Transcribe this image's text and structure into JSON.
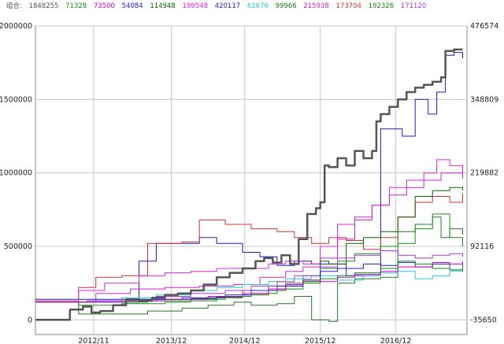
{
  "legend": {
    "label": "组合:",
    "values": [
      "1848255",
      "71328",
      "73500",
      "54084",
      "114948",
      "199548",
      "420117",
      "61676",
      "99966",
      "215938",
      "173704",
      "192326",
      "171120"
    ],
    "colors": [
      "#555555",
      "#1a8a1a",
      "#cc00cc",
      "#2020cc",
      "#006600",
      "#dd22dd",
      "#1a1acc",
      "#22cccc",
      "#227722",
      "#cc22cc",
      "#cc3333",
      "#118811",
      "#aa33dd"
    ]
  },
  "chart_data": {
    "type": "line",
    "title": "",
    "xlabel": "",
    "ylabel": "",
    "x_ticks": [
      "2012/11",
      "2013/12",
      "2014/12",
      "2015/12",
      "2016/12"
    ],
    "left_axis": {
      "ticks": [
        0,
        500000,
        1000000,
        1500000,
        2000000
      ],
      "ylim": [
        -100000,
        2000000
      ]
    },
    "right_axis": {
      "ticks": [
        -35650,
        92116,
        219882,
        348809,
        476574
      ]
    },
    "x_range": [
      0,
      100
    ],
    "series": [
      {
        "color": "#555555",
        "width": 2.5,
        "points": [
          [
            0,
            0
          ],
          [
            7,
            0
          ],
          [
            8,
            70000
          ],
          [
            11,
            90000
          ],
          [
            13,
            50000
          ],
          [
            15,
            60000
          ],
          [
            18,
            100000
          ],
          [
            21,
            140000
          ],
          [
            24,
            130000
          ],
          [
            27,
            150000
          ],
          [
            30,
            170000
          ],
          [
            33,
            180000
          ],
          [
            36,
            200000
          ],
          [
            39,
            240000
          ],
          [
            42,
            290000
          ],
          [
            45,
            320000
          ],
          [
            48,
            350000
          ],
          [
            51,
            400000
          ],
          [
            53,
            420000
          ],
          [
            55,
            390000
          ],
          [
            57,
            440000
          ],
          [
            59,
            380000
          ],
          [
            61,
            550000
          ],
          [
            63,
            720000
          ],
          [
            65,
            760000
          ],
          [
            66,
            800000
          ],
          [
            67,
            1050000
          ],
          [
            68,
            1040000
          ],
          [
            70,
            1100000
          ],
          [
            72,
            1050000
          ],
          [
            74,
            1150000
          ],
          [
            76,
            1100000
          ],
          [
            78,
            1150000
          ],
          [
            79,
            1350000
          ],
          [
            80,
            1400000
          ],
          [
            82,
            1450000
          ],
          [
            84,
            1500000
          ],
          [
            86,
            1550000
          ],
          [
            88,
            1580000
          ],
          [
            90,
            1600000
          ],
          [
            92,
            1620000
          ],
          [
            94,
            1650000
          ],
          [
            95,
            1830000
          ],
          [
            97,
            1840000
          ],
          [
            99,
            1840000
          ]
        ]
      },
      {
        "color": "#1a1acc",
        "width": 1,
        "points": [
          [
            0,
            140000
          ],
          [
            20,
            140000
          ],
          [
            24,
            400000
          ],
          [
            28,
            520000
          ],
          [
            34,
            520000
          ],
          [
            38,
            560000
          ],
          [
            42,
            520000
          ],
          [
            48,
            460000
          ],
          [
            52,
            430000
          ],
          [
            56,
            370000
          ],
          [
            60,
            400000
          ],
          [
            64,
            380000
          ],
          [
            68,
            380000
          ],
          [
            72,
            300000
          ],
          [
            76,
            300000
          ],
          [
            80,
            1300000
          ],
          [
            83,
            1300000
          ],
          [
            85,
            1250000
          ],
          [
            88,
            1500000
          ],
          [
            91,
            1400000
          ],
          [
            93,
            1550000
          ],
          [
            95,
            1800000
          ],
          [
            97,
            1820000
          ],
          [
            99,
            1780000
          ]
        ]
      },
      {
        "color": "#cc3333",
        "width": 1,
        "points": [
          [
            0,
            130000
          ],
          [
            10,
            220000
          ],
          [
            14,
            290000
          ],
          [
            20,
            300000
          ],
          [
            26,
            520000
          ],
          [
            34,
            530000
          ],
          [
            38,
            680000
          ],
          [
            44,
            650000
          ],
          [
            50,
            620000
          ],
          [
            56,
            600000
          ],
          [
            60,
            560000
          ],
          [
            64,
            520000
          ],
          [
            68,
            560000
          ],
          [
            72,
            540000
          ],
          [
            76,
            480000
          ],
          [
            80,
            560000
          ],
          [
            84,
            700000
          ],
          [
            88,
            800000
          ],
          [
            92,
            840000
          ],
          [
            96,
            800000
          ],
          [
            99,
            860000
          ]
        ]
      },
      {
        "color": "#dd22dd",
        "width": 1,
        "points": [
          [
            0,
            120000
          ],
          [
            10,
            200000
          ],
          [
            16,
            250000
          ],
          [
            24,
            300000
          ],
          [
            30,
            320000
          ],
          [
            36,
            330000
          ],
          [
            42,
            350000
          ],
          [
            48,
            350000
          ],
          [
            54,
            380000
          ],
          [
            58,
            400000
          ],
          [
            62,
            380000
          ],
          [
            66,
            500000
          ],
          [
            70,
            650000
          ],
          [
            74,
            700000
          ],
          [
            78,
            780000
          ],
          [
            82,
            900000
          ],
          [
            86,
            950000
          ],
          [
            90,
            1000000
          ],
          [
            93,
            1090000
          ],
          [
            96,
            1050000
          ],
          [
            99,
            960000
          ]
        ]
      },
      {
        "color": "#cc22cc",
        "width": 1,
        "points": [
          [
            0,
            120000
          ],
          [
            14,
            180000
          ],
          [
            22,
            210000
          ],
          [
            30,
            220000
          ],
          [
            38,
            230000
          ],
          [
            46,
            240000
          ],
          [
            52,
            290000
          ],
          [
            58,
            330000
          ],
          [
            62,
            360000
          ],
          [
            66,
            420000
          ],
          [
            70,
            550000
          ],
          [
            74,
            680000
          ],
          [
            78,
            780000
          ],
          [
            82,
            850000
          ],
          [
            86,
            900000
          ],
          [
            90,
            950000
          ],
          [
            94,
            1000000
          ],
          [
            99,
            980000
          ]
        ]
      },
      {
        "color": "#006600",
        "width": 1,
        "points": [
          [
            0,
            120000
          ],
          [
            12,
            130000
          ],
          [
            20,
            130000
          ],
          [
            28,
            140000
          ],
          [
            36,
            145000
          ],
          [
            42,
            155000
          ],
          [
            48,
            170000
          ],
          [
            54,
            200000
          ],
          [
            58,
            230000
          ],
          [
            62,
            260000
          ],
          [
            66,
            400000
          ],
          [
            68,
            380000
          ],
          [
            72,
            520000
          ],
          [
            76,
            560000
          ],
          [
            80,
            600000
          ],
          [
            84,
            700000
          ],
          [
            88,
            840000
          ],
          [
            92,
            880000
          ],
          [
            96,
            900000
          ],
          [
            99,
            880000
          ]
        ]
      },
      {
        "color": "#227722",
        "width": 1,
        "points": [
          [
            0,
            120000
          ],
          [
            10,
            40000
          ],
          [
            18,
            40000
          ],
          [
            26,
            60000
          ],
          [
            34,
            80000
          ],
          [
            40,
            100000
          ],
          [
            46,
            120000
          ],
          [
            50,
            100000
          ],
          [
            56,
            110000
          ],
          [
            60,
            160000
          ],
          [
            64,
            0
          ],
          [
            68,
            -10000
          ],
          [
            70,
            250000
          ],
          [
            74,
            280000
          ],
          [
            80,
            290000
          ],
          [
            84,
            600000
          ],
          [
            88,
            650000
          ],
          [
            92,
            700000
          ],
          [
            94,
            560000
          ],
          [
            96,
            620000
          ],
          [
            99,
            580000
          ]
        ]
      },
      {
        "color": "#1a8a1a",
        "width": 1,
        "points": [
          [
            0,
            120000
          ],
          [
            10,
            100000
          ],
          [
            20,
            110000
          ],
          [
            30,
            120000
          ],
          [
            36,
            130000
          ],
          [
            42,
            150000
          ],
          [
            48,
            200000
          ],
          [
            54,
            230000
          ],
          [
            58,
            250000
          ],
          [
            62,
            300000
          ],
          [
            66,
            350000
          ],
          [
            70,
            400000
          ],
          [
            74,
            450000
          ],
          [
            80,
            500000
          ],
          [
            84,
            520000
          ],
          [
            88,
            620000
          ],
          [
            92,
            720000
          ],
          [
            96,
            560000
          ],
          [
            99,
            500000
          ]
        ]
      },
      {
        "color": "#22cccc",
        "width": 1,
        "points": [
          [
            0,
            120000
          ],
          [
            12,
            130000
          ],
          [
            20,
            150000
          ],
          [
            28,
            170000
          ],
          [
            36,
            200000
          ],
          [
            42,
            220000
          ],
          [
            48,
            240000
          ],
          [
            54,
            260000
          ],
          [
            58,
            280000
          ],
          [
            64,
            300000
          ],
          [
            70,
            270000
          ],
          [
            76,
            300000
          ],
          [
            80,
            320000
          ],
          [
            84,
            330000
          ],
          [
            88,
            280000
          ],
          [
            92,
            300000
          ],
          [
            96,
            330000
          ],
          [
            99,
            350000
          ]
        ]
      },
      {
        "color": "#aa33dd",
        "width": 1,
        "points": [
          [
            0,
            120000
          ],
          [
            12,
            130000
          ],
          [
            20,
            140000
          ],
          [
            28,
            160000
          ],
          [
            36,
            180000
          ],
          [
            44,
            200000
          ],
          [
            50,
            230000
          ],
          [
            56,
            260000
          ],
          [
            60,
            300000
          ],
          [
            66,
            360000
          ],
          [
            70,
            420000
          ],
          [
            74,
            440000
          ],
          [
            80,
            470000
          ],
          [
            84,
            440000
          ],
          [
            88,
            420000
          ],
          [
            92,
            440000
          ],
          [
            96,
            450000
          ],
          [
            99,
            430000
          ]
        ]
      },
      {
        "color": "#2020cc",
        "width": 1,
        "points": [
          [
            0,
            120000
          ],
          [
            14,
            120000
          ],
          [
            24,
            140000
          ],
          [
            34,
            150000
          ],
          [
            44,
            170000
          ],
          [
            50,
            200000
          ],
          [
            56,
            230000
          ],
          [
            62,
            270000
          ],
          [
            66,
            330000
          ],
          [
            70,
            350000
          ],
          [
            76,
            380000
          ],
          [
            80,
            370000
          ],
          [
            84,
            390000
          ],
          [
            88,
            360000
          ],
          [
            92,
            380000
          ],
          [
            96,
            340000
          ],
          [
            99,
            360000
          ]
        ]
      },
      {
        "color": "#118811",
        "width": 1,
        "points": [
          [
            0,
            120000
          ],
          [
            14,
            120000
          ],
          [
            26,
            130000
          ],
          [
            36,
            140000
          ],
          [
            44,
            160000
          ],
          [
            50,
            180000
          ],
          [
            56,
            210000
          ],
          [
            62,
            250000
          ],
          [
            66,
            280000
          ],
          [
            70,
            300000
          ],
          [
            74,
            320000
          ],
          [
            80,
            350000
          ],
          [
            84,
            400000
          ],
          [
            88,
            380000
          ],
          [
            92,
            350000
          ],
          [
            96,
            340000
          ],
          [
            99,
            380000
          ]
        ]
      },
      {
        "color": "#cc00cc",
        "width": 1,
        "points": [
          [
            0,
            120000
          ],
          [
            10,
            120000
          ],
          [
            20,
            130000
          ],
          [
            30,
            140000
          ],
          [
            40,
            160000
          ],
          [
            48,
            180000
          ],
          [
            54,
            210000
          ],
          [
            58,
            240000
          ],
          [
            62,
            270000
          ],
          [
            66,
            260000
          ],
          [
            70,
            290000
          ],
          [
            74,
            310000
          ],
          [
            80,
            330000
          ],
          [
            84,
            360000
          ],
          [
            88,
            360000
          ],
          [
            92,
            390000
          ],
          [
            96,
            380000
          ],
          [
            99,
            400000
          ]
        ]
      }
    ]
  }
}
